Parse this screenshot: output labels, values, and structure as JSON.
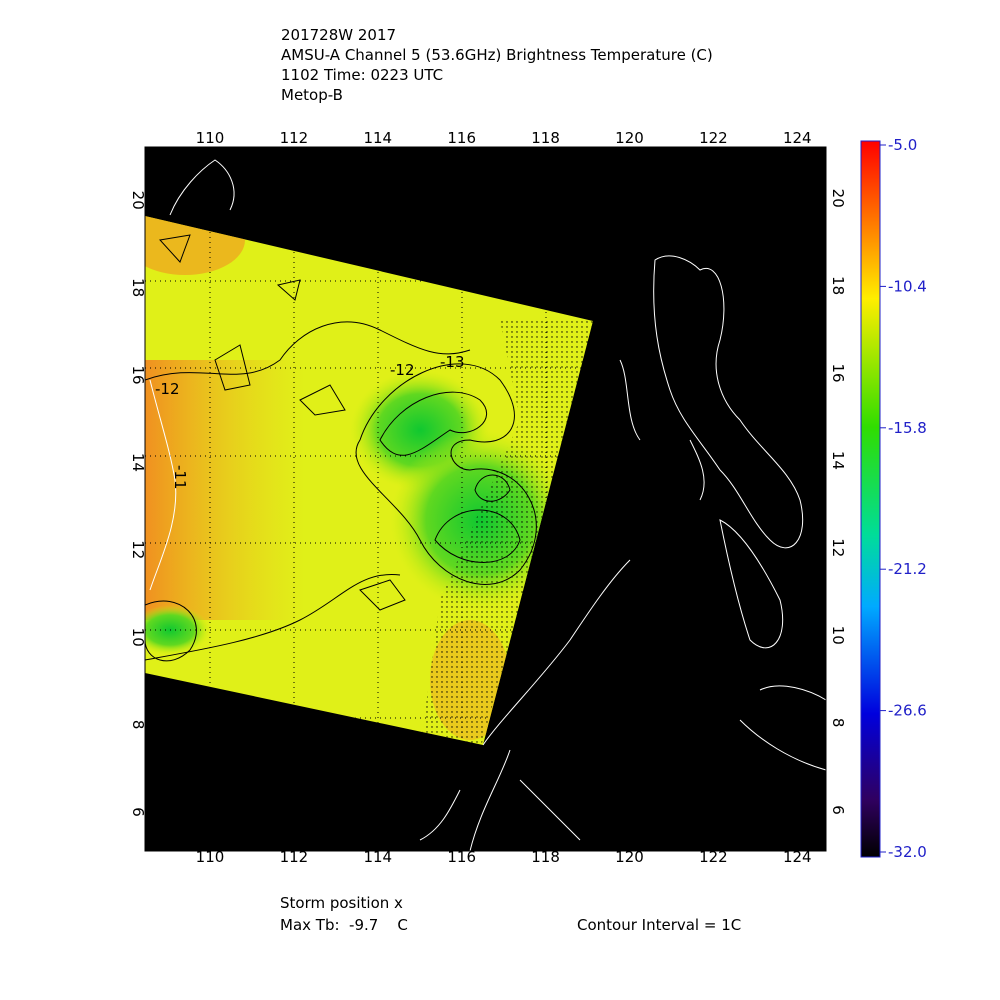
{
  "header": {
    "lines": [
      "201728W 2017",
      "AMSU-A Channel 5 (53.6GHz) Brightness Temperature (C)",
      "1102 Time: 0223 UTC",
      "Metop-B"
    ]
  },
  "map": {
    "lon_labels": [
      "110",
      "112",
      "114",
      "116",
      "118",
      "120",
      "122",
      "124"
    ],
    "lat_labels": [
      "6",
      "8",
      "10",
      "12",
      "14",
      "16",
      "18",
      "20"
    ],
    "contour_labels": [
      "-12",
      "-12",
      "-13",
      "-11"
    ]
  },
  "colorbar": {
    "labels": [
      "-5.0",
      "-10.4",
      "-15.8",
      "-21.2",
      "-26.6",
      "-32.0"
    ]
  },
  "footer": {
    "storm": "Storm position x",
    "max_tb": "Max Tb:  -9.7    C",
    "interval": "Contour Interval = 1C"
  }
}
